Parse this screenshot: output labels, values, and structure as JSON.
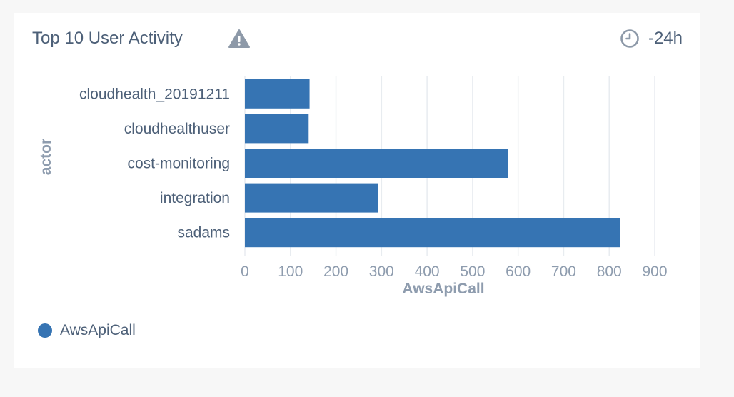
{
  "panel": {
    "title": "Top 10 User Activity",
    "warning_icon": "warning-triangle-icon",
    "clock_icon": "clock-icon",
    "time_range": "-24h"
  },
  "colors": {
    "bar": "#3674b3",
    "text": "#4d6078",
    "axis_text": "#8e9cae",
    "grid": "#e8ecf0",
    "icon": "#8d99a8"
  },
  "chart_data": {
    "type": "bar",
    "orientation": "horizontal",
    "categories": [
      "cloudhealth_20191211",
      "cloudhealthuser",
      "cost-monitoring",
      "integration",
      "sadams"
    ],
    "series": [
      {
        "name": "AwsApiCall",
        "values": [
          142,
          140,
          578,
          292,
          824
        ]
      }
    ],
    "xlabel": "AwsApiCall",
    "ylabel": "actor",
    "xlim": [
      0,
      900
    ],
    "xticks": [
      0,
      100,
      200,
      300,
      400,
      500,
      600,
      700,
      800,
      900
    ],
    "grid": true,
    "legend_position": "bottom-left"
  }
}
